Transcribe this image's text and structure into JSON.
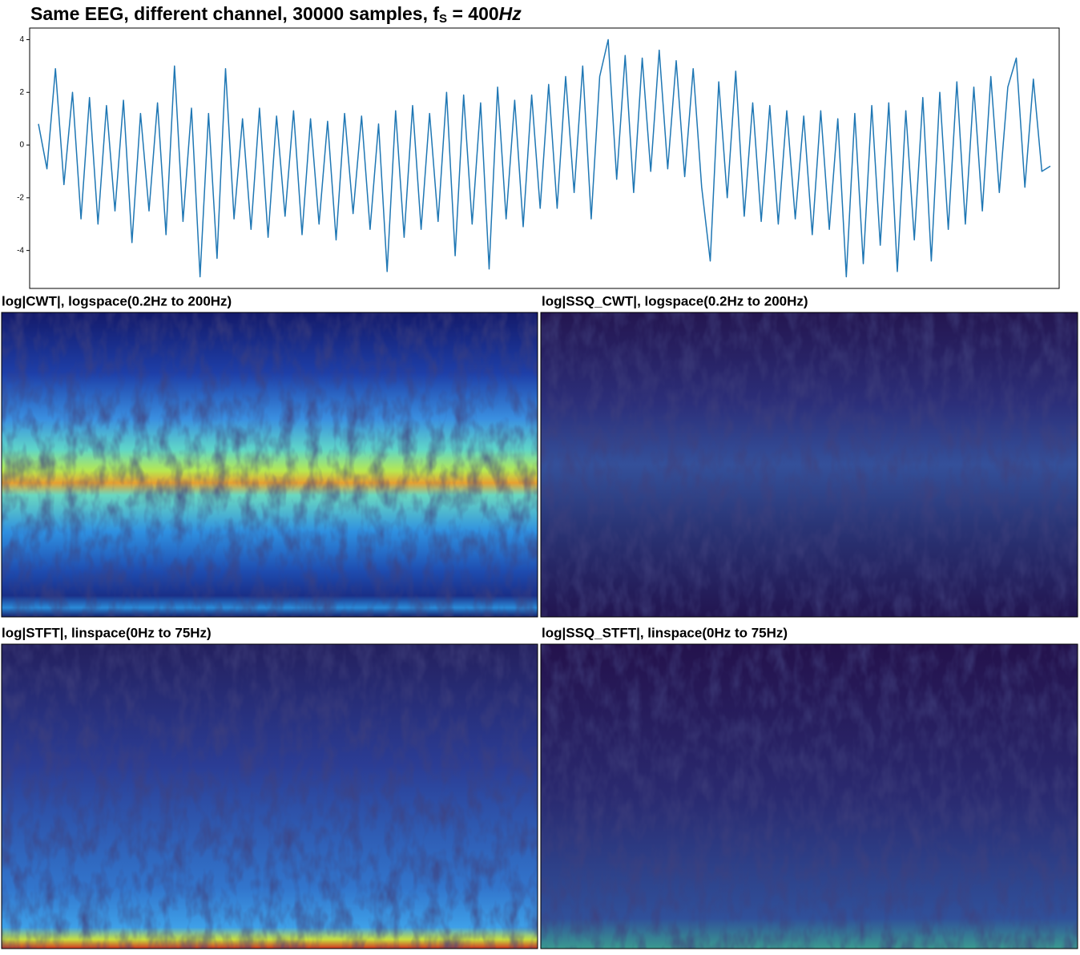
{
  "chart_data": [
    {
      "type": "line",
      "title": "Same EEG, different channel, 30000 samples, f",
      "title_subscript": "S",
      "title_suffix": " = 400",
      "title_unit": "Hz",
      "color": "#1f77b4",
      "ylim": [
        -5.44,
        4.44
      ],
      "yticks": [
        -4,
        -2,
        0,
        2,
        4
      ],
      "values": [
        0.8,
        -0.9,
        2.9,
        -1.5,
        2.0,
        -2.8,
        1.8,
        -3.0,
        1.5,
        -2.5,
        1.7,
        -3.7,
        1.2,
        -2.5,
        1.6,
        -3.4,
        3.0,
        -2.9,
        1.4,
        -5.0,
        1.2,
        -4.3,
        2.9,
        -2.8,
        1.0,
        -3.2,
        1.4,
        -3.5,
        1.1,
        -2.7,
        1.3,
        -3.4,
        1.0,
        -3.0,
        0.9,
        -3.6,
        1.2,
        -2.6,
        1.1,
        -3.2,
        0.8,
        -4.8,
        1.3,
        -3.5,
        1.5,
        -3.2,
        1.2,
        -2.9,
        2.0,
        -4.2,
        1.9,
        -3.0,
        1.6,
        -4.7,
        2.2,
        -2.8,
        1.7,
        -3.1,
        1.9,
        -2.4,
        2.3,
        -2.4,
        2.6,
        -1.8,
        3.0,
        -2.8,
        2.6,
        4.0,
        -1.3,
        3.4,
        -1.8,
        3.3,
        -1.0,
        3.6,
        -0.9,
        3.2,
        -1.2,
        2.9,
        -1.6,
        -4.4,
        2.4,
        -2.0,
        2.8,
        -2.7,
        1.6,
        -2.9,
        1.5,
        -3.0,
        1.3,
        -2.8,
        1.1,
        -3.4,
        1.3,
        -3.2,
        1.0,
        -5.0,
        1.2,
        -4.5,
        1.5,
        -3.8,
        1.6,
        -4.8,
        1.3,
        -3.6,
        1.8,
        -4.4,
        2.0,
        -3.2,
        2.4,
        -3.0,
        2.2,
        -2.5,
        2.6,
        -1.8,
        2.2,
        3.3,
        -1.6,
        2.5,
        -1.0,
        -0.8
      ]
    },
    {
      "type": "heatmap",
      "title": "log|CWT|, logspace(0.2Hz to 200Hz)"
    },
    {
      "type": "heatmap",
      "title": "log|SSQ_CWT|, logspace(0.2Hz to 200Hz)"
    },
    {
      "type": "heatmap",
      "title": "log|STFT|, linspace(0Hz to 75Hz)"
    },
    {
      "type": "heatmap",
      "title": "log|SSQ_STFT|, linspace(0Hz to 75Hz)"
    }
  ]
}
